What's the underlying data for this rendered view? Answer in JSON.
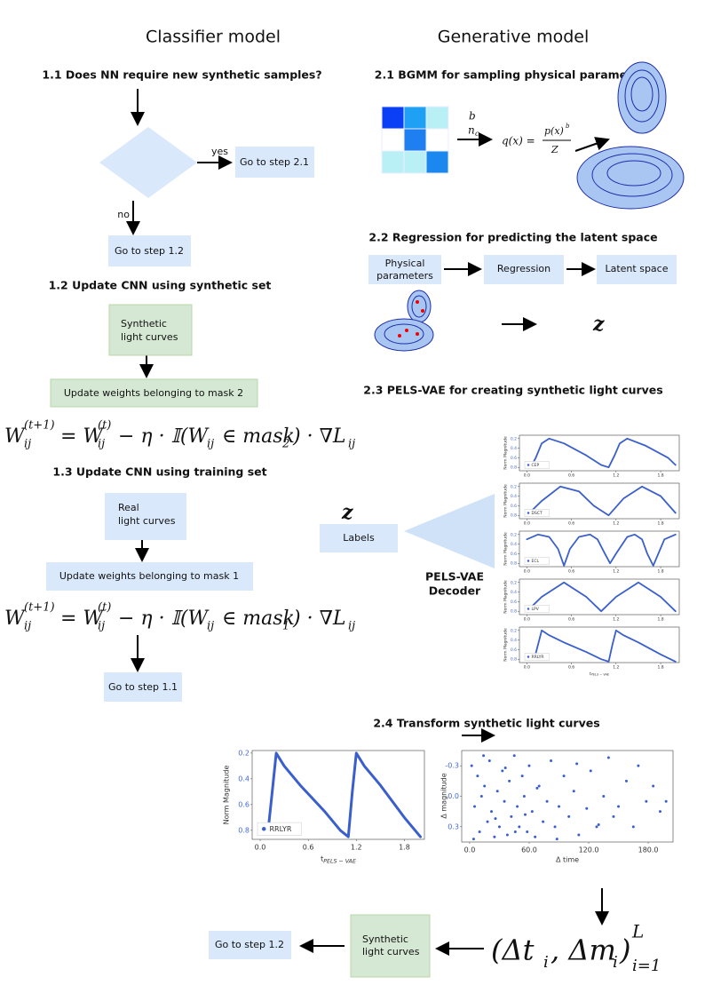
{
  "headers": {
    "left": "Classifier model",
    "right": "Generative model"
  },
  "step_1_1": {
    "title": "1.1 Does NN require new synthetic samples?",
    "yes": "yes",
    "no": "no",
    "yes_box": "Go to step 2.1",
    "no_box": "Go to step 1.2"
  },
  "step_1_2": {
    "title": "1.2 Update CNN using synthetic set",
    "box": [
      "Synthetic",
      "light curves"
    ],
    "update": "Update weights belonging to mask 2",
    "formula": [
      "W",
      "(t+1)",
      "ij",
      "= W",
      "(t)",
      "ij",
      "− η · 𝕀(W",
      "ij",
      "∈ mask",
      "2",
      ") · ∇L",
      "ij"
    ]
  },
  "step_1_3": {
    "title": "1.3 Update CNN using training set",
    "box": [
      "Real",
      "light curves"
    ],
    "update": "Update weights belonging to mask 1",
    "formula": [
      "W",
      "(t+1)",
      "ij",
      "= W",
      "(t)",
      "ij",
      "− η · 𝕀(W",
      "ij",
      "∈ mask",
      "1",
      ") · ∇L",
      "ij"
    ],
    "next": "Go to step 1.1"
  },
  "step_2_1": {
    "title": "2.1 BGMM for sampling physical parameters",
    "b": "b",
    "n": "n",
    "n_sub": "c",
    "q": "q(x) =",
    "p": "p(x)",
    "p_sup": "b",
    "z": "Z"
  },
  "step_2_2": {
    "title": "2.2 Regression for predicting the latent space",
    "boxes": [
      [
        "Physical",
        "parameters"
      ],
      [
        "Regression"
      ],
      [
        "Latent space"
      ]
    ],
    "z": "z"
  },
  "step_2_3": {
    "title": "2.3 PELS-VAE for creating synthetic light curves",
    "z": "z",
    "labels": "Labels",
    "decoder": [
      "PELS-VAE",
      "Decoder"
    ]
  },
  "mini_plots": [
    {
      "legend": "CEP",
      "ylabel": "Norm Magnitude",
      "xlim": [
        -0.1,
        2.05
      ],
      "ylim": [
        0.87,
        0.13
      ],
      "yticks": [
        0.2,
        0.4,
        0.6,
        0.8
      ],
      "xticks": [
        {
          "value": 0,
          "label": "0.0"
        },
        0.6,
        1.2,
        1.8
      ],
      "x": [
        0.05,
        0.12,
        0.2,
        0.3,
        0.5,
        0.8,
        1.0,
        1.1,
        1.18,
        1.25,
        1.35,
        1.6,
        1.9,
        2.0
      ],
      "y": [
        0.8,
        0.6,
        0.3,
        0.2,
        0.3,
        0.55,
        0.75,
        0.8,
        0.55,
        0.3,
        0.2,
        0.35,
        0.6,
        0.75
      ]
    },
    {
      "legend": "DSCT",
      "ylabel": "Norm Magnitude",
      "xlim": [
        -0.1,
        2.05
      ],
      "ylim": [
        0.87,
        0.13
      ],
      "yticks": [
        0.2,
        0.4,
        0.6,
        0.8
      ],
      "xticks": [
        {
          "value": 0,
          "label": "0.0"
        },
        0.6,
        1.2,
        1.8
      ],
      "x": [
        0,
        0.2,
        0.45,
        0.7,
        0.9,
        1.1,
        1.3,
        1.55,
        1.8,
        2.0
      ],
      "y": [
        0.8,
        0.5,
        0.2,
        0.3,
        0.6,
        0.8,
        0.45,
        0.2,
        0.4,
        0.75
      ]
    },
    {
      "legend": "ECL",
      "ylabel": "Norm Magnitude",
      "xlim": [
        -0.1,
        2.05
      ],
      "ylim": [
        0.87,
        0.13
      ],
      "yticks": [
        0.2,
        0.4,
        0.6,
        0.8
      ],
      "xticks": [
        {
          "value": 0,
          "label": "0.0"
        },
        0.6,
        1.2,
        1.8
      ],
      "x": [
        0,
        0.15,
        0.3,
        0.42,
        0.5,
        0.58,
        0.7,
        0.85,
        0.95,
        1.05,
        1.12,
        1.2,
        1.35,
        1.45,
        1.55,
        1.62,
        1.7,
        1.85,
        2.0
      ],
      "y": [
        0.3,
        0.2,
        0.25,
        0.5,
        0.85,
        0.5,
        0.25,
        0.2,
        0.3,
        0.6,
        0.8,
        0.6,
        0.25,
        0.2,
        0.3,
        0.6,
        0.85,
        0.3,
        0.2
      ]
    },
    {
      "legend": "LPV",
      "ylabel": "Norm Magnitude",
      "xlim": [
        -0.1,
        2.05
      ],
      "ylim": [
        0.87,
        0.13
      ],
      "yticks": [
        0.2,
        0.4,
        0.6,
        0.8
      ],
      "xticks": [
        {
          "value": 0,
          "label": "0.0"
        },
        0.6,
        1.2,
        1.8
      ],
      "x": [
        0,
        0.2,
        0.5,
        0.8,
        1.0,
        1.2,
        1.5,
        1.8,
        2.0
      ],
      "y": [
        0.8,
        0.5,
        0.2,
        0.5,
        0.8,
        0.5,
        0.2,
        0.5,
        0.8
      ]
    },
    {
      "legend": "RRLYR",
      "ylabel": "Norm Magnitude",
      "xlabel": "t",
      "xlabel_sub": "PELS − VAE",
      "xlim": [
        -0.1,
        2.05
      ],
      "ylim": [
        0.87,
        0.13
      ],
      "yticks": [
        0.2,
        0.4,
        0.6,
        0.8
      ],
      "xticks": [
        {
          "value": 0,
          "label": "0.0"
        },
        0.6,
        1.2,
        1.8
      ],
      "x": [
        0.1,
        0.15,
        0.2,
        0.3,
        0.5,
        0.8,
        1.0,
        1.1,
        1.15,
        1.2,
        1.3,
        1.5,
        1.8,
        2.0
      ],
      "y": [
        0.8,
        0.5,
        0.2,
        0.3,
        0.45,
        0.65,
        0.8,
        0.85,
        0.5,
        0.2,
        0.3,
        0.45,
        0.7,
        0.85
      ]
    }
  ],
  "step_2_4": {
    "title": "2.4 Transform synthetic light curves",
    "box": [
      "Synthetic",
      "light curves"
    ],
    "next": "Go to step 1.2",
    "formula": [
      "(Δt",
      "i",
      ", Δm",
      "i",
      ")",
      "L",
      "i=1"
    ]
  },
  "big_plot": {
    "legend": "RRLYR",
    "ylabel": "Norm Magnitude",
    "xlabel": "t",
    "xlabel_sub": "PELS − VAE",
    "xlim": [
      -0.1,
      2.05
    ],
    "ylim": [
      0.87,
      0.18
    ],
    "yticks": [
      0.2,
      0.4,
      0.6,
      0.8
    ],
    "xticks": [
      {
        "value": 0,
        "label": "0.0"
      },
      0.6,
      1.2,
      1.8
    ],
    "x": [
      0.1,
      0.15,
      0.2,
      0.3,
      0.5,
      0.8,
      1.0,
      1.1,
      1.15,
      1.2,
      1.3,
      1.5,
      1.8,
      2.0
    ],
    "y": [
      0.8,
      0.5,
      0.2,
      0.3,
      0.45,
      0.65,
      0.8,
      0.85,
      0.5,
      0.2,
      0.3,
      0.45,
      0.7,
      0.85
    ]
  },
  "scatter_plot": {
    "xlabel": "Δ time",
    "ylabel": "Δ magnitude",
    "xlim": [
      -8,
      205
    ],
    "ylim": [
      0.45,
      -0.45
    ],
    "yticks": [
      -0.3,
      {
        "value": 0,
        "label": "0.0"
      },
      0.3
    ],
    "xticks": [
      {
        "value": 0,
        "label": "0.0"
      },
      {
        "value": 60,
        "label": "60.0"
      },
      {
        "value": 120,
        "label": "120.0"
      },
      {
        "value": 180,
        "label": "180.0"
      }
    ],
    "x": [
      2,
      5,
      8,
      10,
      12,
      15,
      18,
      20,
      22,
      25,
      28,
      30,
      33,
      35,
      38,
      40,
      42,
      45,
      48,
      50,
      53,
      55,
      58,
      60,
      63,
      66,
      70,
      74,
      78,
      82,
      86,
      90,
      95,
      100,
      105,
      110,
      118,
      122,
      128,
      135,
      140,
      145,
      150,
      158,
      165,
      170,
      178,
      185,
      192,
      198,
      4,
      14,
      26,
      36,
      46,
      56,
      68,
      88,
      108,
      130
    ],
    "y": [
      -0.3,
      0.1,
      -0.2,
      0.35,
      0.0,
      -0.1,
      0.25,
      -0.35,
      0.15,
      0.4,
      -0.05,
      0.3,
      -0.25,
      0.05,
      0.38,
      -0.15,
      0.2,
      -0.4,
      0.1,
      0.3,
      -0.2,
      0.0,
      0.35,
      -0.3,
      0.15,
      0.4,
      -0.1,
      0.25,
      0.05,
      -0.35,
      0.3,
      0.1,
      -0.2,
      0.2,
      -0.05,
      0.38,
      0.12,
      -0.25,
      0.3,
      0.0,
      -0.38,
      0.2,
      0.1,
      -0.15,
      0.3,
      -0.3,
      0.05,
      -0.1,
      0.15,
      0.05,
      0.42,
      -0.4,
      0.22,
      -0.28,
      0.35,
      0.18,
      -0.08,
      0.42,
      -0.32,
      0.28
    ]
  }
}
